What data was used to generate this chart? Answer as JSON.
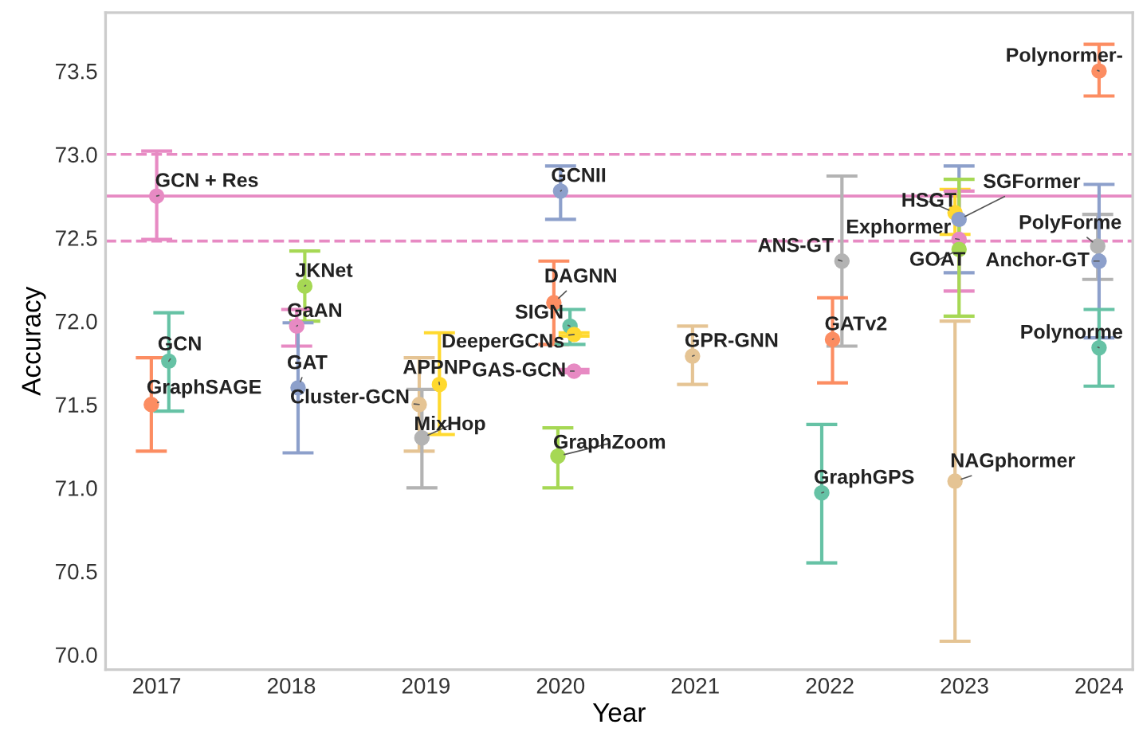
{
  "chart_data": {
    "type": "scatter",
    "xlabel": "Year",
    "ylabel": "Accuracy",
    "xlim": [
      2016.62,
      2024.25
    ],
    "xticks": [
      2017,
      2018,
      2019,
      2020,
      2021,
      2022,
      2023,
      2024
    ],
    "ylim": [
      69.91,
      73.85
    ],
    "yticks": [
      {
        "value": 70,
        "label": "70.0"
      },
      70.5,
      {
        "value": 71,
        "label": "71.0"
      },
      71.5,
      {
        "value": 72,
        "label": "72.0"
      },
      72.5,
      {
        "value": 73,
        "label": "73.0"
      },
      73.5
    ],
    "grid": false,
    "legend": false,
    "marker": "circle",
    "ref_lines": [
      {
        "axis": "y",
        "value": 72.75,
        "color": "#e78ac3",
        "line_style": "solid"
      },
      {
        "axis": "y",
        "value": 73.0,
        "color": "#e78ac3",
        "line_style": "dashed"
      },
      {
        "axis": "y",
        "value": 72.48,
        "color": "#e78ac3",
        "line_style": "dashed"
      }
    ],
    "series": [
      {
        "name": "GCN + Res",
        "color": "#e78ac3",
        "x": [
          2017.0
        ],
        "values": [
          72.75
        ],
        "errors": [
          [
            72.49,
            73.02
          ]
        ]
      },
      {
        "name": "GCN",
        "color": "#66c2a5",
        "x": [
          2017.09
        ],
        "values": [
          71.76
        ],
        "errors": [
          [
            71.46,
            72.05
          ]
        ]
      },
      {
        "name": "GraphSAGE",
        "color": "#fc8d62",
        "x": [
          2016.96
        ],
        "values": [
          71.5
        ],
        "errors": [
          [
            71.22,
            71.78
          ]
        ]
      },
      {
        "name": "JKNet",
        "color": "#a6d854",
        "x": [
          2018.1
        ],
        "values": [
          72.21
        ],
        "errors": [
          [
            72.0,
            72.42
          ]
        ]
      },
      {
        "name": "GaAN",
        "color": "#e78ac3",
        "x": [
          2018.04
        ],
        "values": [
          71.97
        ],
        "errors": [
          [
            71.85,
            72.07
          ]
        ]
      },
      {
        "name": "GAT",
        "color": "#8da0cb",
        "x": [
          2018.05
        ],
        "values": [
          71.6
        ],
        "errors": [
          [
            71.21,
            71.99
          ]
        ]
      },
      {
        "name": "Cluster-GCN",
        "color": "#e5c494",
        "x": [
          2018.95
        ],
        "values": [
          71.5
        ],
        "errors": [
          [
            71.22,
            71.78
          ]
        ]
      },
      {
        "name": "APPNP",
        "color": "#ffd92f",
        "x": [
          2019.1
        ],
        "values": [
          71.62
        ],
        "errors": [
          [
            71.32,
            71.93
          ]
        ]
      },
      {
        "name": "MixHop",
        "color": "#b3b3b3",
        "x": [
          2018.97
        ],
        "values": [
          71.3
        ],
        "errors": [
          [
            71.0,
            71.59
          ]
        ]
      },
      {
        "name": "GCNII",
        "color": "#8da0cb",
        "x": [
          2020.0
        ],
        "values": [
          72.78
        ],
        "errors": [
          [
            72.61,
            72.93
          ]
        ]
      },
      {
        "name": "DAGNN",
        "color": "#fc8d62",
        "x": [
          2019.95
        ],
        "values": [
          72.11
        ],
        "errors": [
          [
            71.86,
            72.36
          ]
        ]
      },
      {
        "name": "SIGN",
        "color": "#66c2a5",
        "x": [
          2020.07
        ],
        "values": [
          71.97
        ],
        "errors": [
          [
            71.86,
            72.07
          ]
        ]
      },
      {
        "name": "DeeperGCNs",
        "color": "#ffd92f",
        "x": [
          2020.1
        ],
        "values": [
          71.92
        ],
        "errors": [
          [
            71.91,
            71.93
          ]
        ]
      },
      {
        "name": "GAS-GCN",
        "color": "#e78ac3",
        "x": [
          2020.1
        ],
        "values": [
          71.7
        ],
        "errors": [
          [
            71.69,
            71.71
          ]
        ]
      },
      {
        "name": "GraphZoom",
        "color": "#a6d854",
        "x": [
          2019.98
        ],
        "values": [
          71.19
        ],
        "errors": [
          [
            71.0,
            71.36
          ]
        ]
      },
      {
        "name": "GPR-GNN",
        "color": "#e5c494",
        "x": [
          2020.98
        ],
        "values": [
          71.79
        ],
        "errors": [
          [
            71.62,
            71.97
          ]
        ]
      },
      {
        "name": "ANS-GT",
        "color": "#b3b3b3",
        "x": [
          2022.09
        ],
        "values": [
          72.36
        ],
        "errors": [
          [
            71.85,
            72.87
          ]
        ]
      },
      {
        "name": "GATv2",
        "color": "#fc8d62",
        "x": [
          2022.02
        ],
        "values": [
          71.89
        ],
        "errors": [
          [
            71.63,
            72.14
          ]
        ]
      },
      {
        "name": "GraphGPS",
        "color": "#66c2a5",
        "x": [
          2021.94
        ],
        "values": [
          70.97
        ],
        "errors": [
          [
            70.55,
            71.38
          ]
        ]
      },
      {
        "name": "HSGT",
        "color": "#ffd92f",
        "x": [
          2022.93
        ],
        "values": [
          72.65
        ],
        "errors": [
          [
            72.52,
            72.79
          ]
        ]
      },
      {
        "name": "SGFormer",
        "color": "#8da0cb",
        "x": [
          2022.96
        ],
        "values": [
          72.61
        ],
        "errors": [
          [
            72.29,
            72.93
          ]
        ]
      },
      {
        "name": "Exphormer",
        "color": "#e78ac3",
        "x": [
          2022.96
        ],
        "values": [
          72.49
        ],
        "errors": [
          [
            72.18,
            72.78
          ]
        ]
      },
      {
        "name": "GOAT",
        "color": "#a6d854",
        "x": [
          2022.96
        ],
        "values": [
          72.43
        ],
        "errors": [
          [
            72.03,
            72.85
          ]
        ]
      },
      {
        "name": "NAGphormer",
        "color": "#e5c494",
        "x": [
          2022.93
        ],
        "values": [
          71.04
        ],
        "errors": [
          [
            70.08,
            72.0
          ]
        ]
      },
      {
        "name": "Polynormer-",
        "color": "#fc8d62",
        "x": [
          2024.0
        ],
        "values": [
          73.5
        ],
        "errors": [
          [
            73.35,
            73.66
          ]
        ]
      },
      {
        "name": "PolyForme",
        "color": "#b3b3b3",
        "x": [
          2023.99
        ],
        "values": [
          72.45
        ],
        "errors": [
          [
            72.25,
            72.64
          ]
        ]
      },
      {
        "name": "Anchor-GT",
        "color": "#8da0cb",
        "x": [
          2024.0
        ],
        "values": [
          72.36
        ],
        "errors": [
          [
            71.9,
            72.82
          ]
        ]
      },
      {
        "name": "Polynorme",
        "color": "#66c2a5",
        "x": [
          2024.0
        ],
        "values": [
          71.84
        ],
        "errors": [
          [
            71.61,
            72.07
          ]
        ]
      }
    ]
  }
}
